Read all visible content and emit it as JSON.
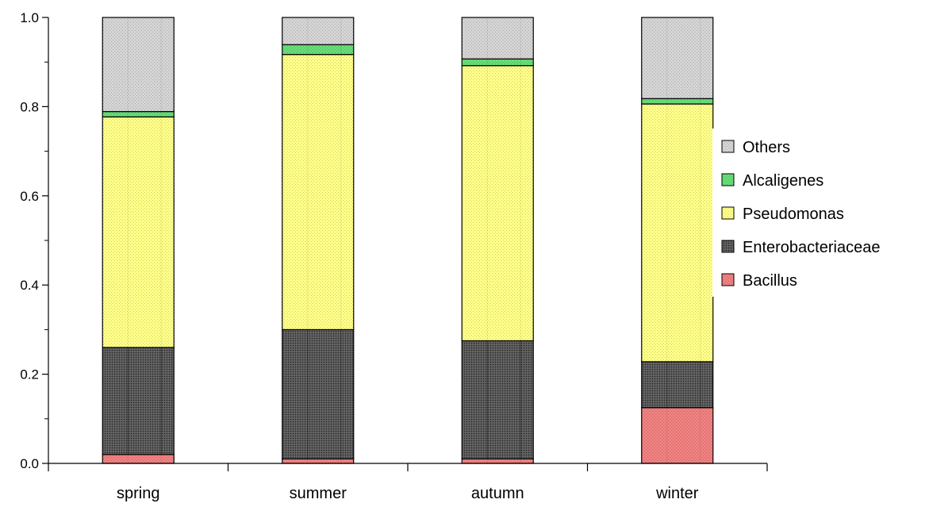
{
  "chart_data": {
    "type": "bar",
    "stacked": true,
    "categories": [
      "spring",
      "summer",
      "autumn",
      "winter"
    ],
    "series": [
      {
        "name": "Bacillus",
        "color": "#f08080",
        "pattern": "dots",
        "values": [
          0.02,
          0.01,
          0.01,
          0.125
        ]
      },
      {
        "name": "Enterobacteriaceae",
        "color": "#555555",
        "pattern": "dense",
        "values": [
          0.24,
          0.29,
          0.265,
          0.103
        ]
      },
      {
        "name": "Pseudomonas",
        "color": "#ffff88",
        "pattern": "dots",
        "values": [
          0.517,
          0.617,
          0.617,
          0.578
        ]
      },
      {
        "name": "Alcaligenes",
        "color": "#66dd77",
        "pattern": "dots",
        "values": [
          0.012,
          0.022,
          0.015,
          0.012
        ]
      },
      {
        "name": "Others",
        "color": "#d4d4d4",
        "pattern": "dots",
        "values": [
          0.211,
          0.061,
          0.093,
          0.182
        ]
      }
    ],
    "ylim": [
      0,
      1.0
    ],
    "yticks": [
      "0.0",
      "0.2",
      "0.4",
      "0.6",
      "0.8",
      "1.0"
    ],
    "ytick_values": [
      0,
      0.2,
      0.4,
      0.6,
      0.8,
      1.0
    ],
    "xlabel": "",
    "ylabel": "",
    "title": "",
    "grid": false,
    "legend": {
      "placement": "right",
      "entries": [
        "Others",
        "Alcaligenes",
        "Pseudomonas",
        "Enterobacteriaceae",
        "Bacillus"
      ]
    }
  }
}
